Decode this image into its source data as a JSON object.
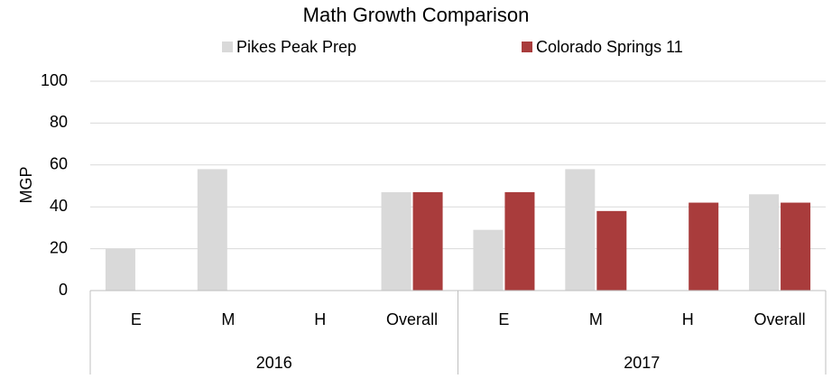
{
  "chart_data": {
    "type": "bar",
    "title": "Math Growth Comparison",
    "y_label": "MGP",
    "categories": [
      "E",
      "M",
      "H",
      "Overall",
      "E",
      "M",
      "H",
      "Overall"
    ],
    "category_groups": [
      "2016",
      "2017"
    ],
    "series": [
      {
        "name": "Pikes Peak Prep",
        "color": "#d9d9d9",
        "values": [
          20,
          58,
          null,
          47,
          29,
          58,
          null,
          46
        ]
      },
      {
        "name": "Colorado Springs 11",
        "color": "#a93c3c",
        "values": [
          null,
          null,
          null,
          47,
          47,
          38,
          42,
          42
        ]
      }
    ],
    "ylim": [
      0,
      100
    ],
    "yticks": [
      0,
      20,
      40,
      60,
      80,
      100
    ],
    "grid": true,
    "legend": "top"
  }
}
